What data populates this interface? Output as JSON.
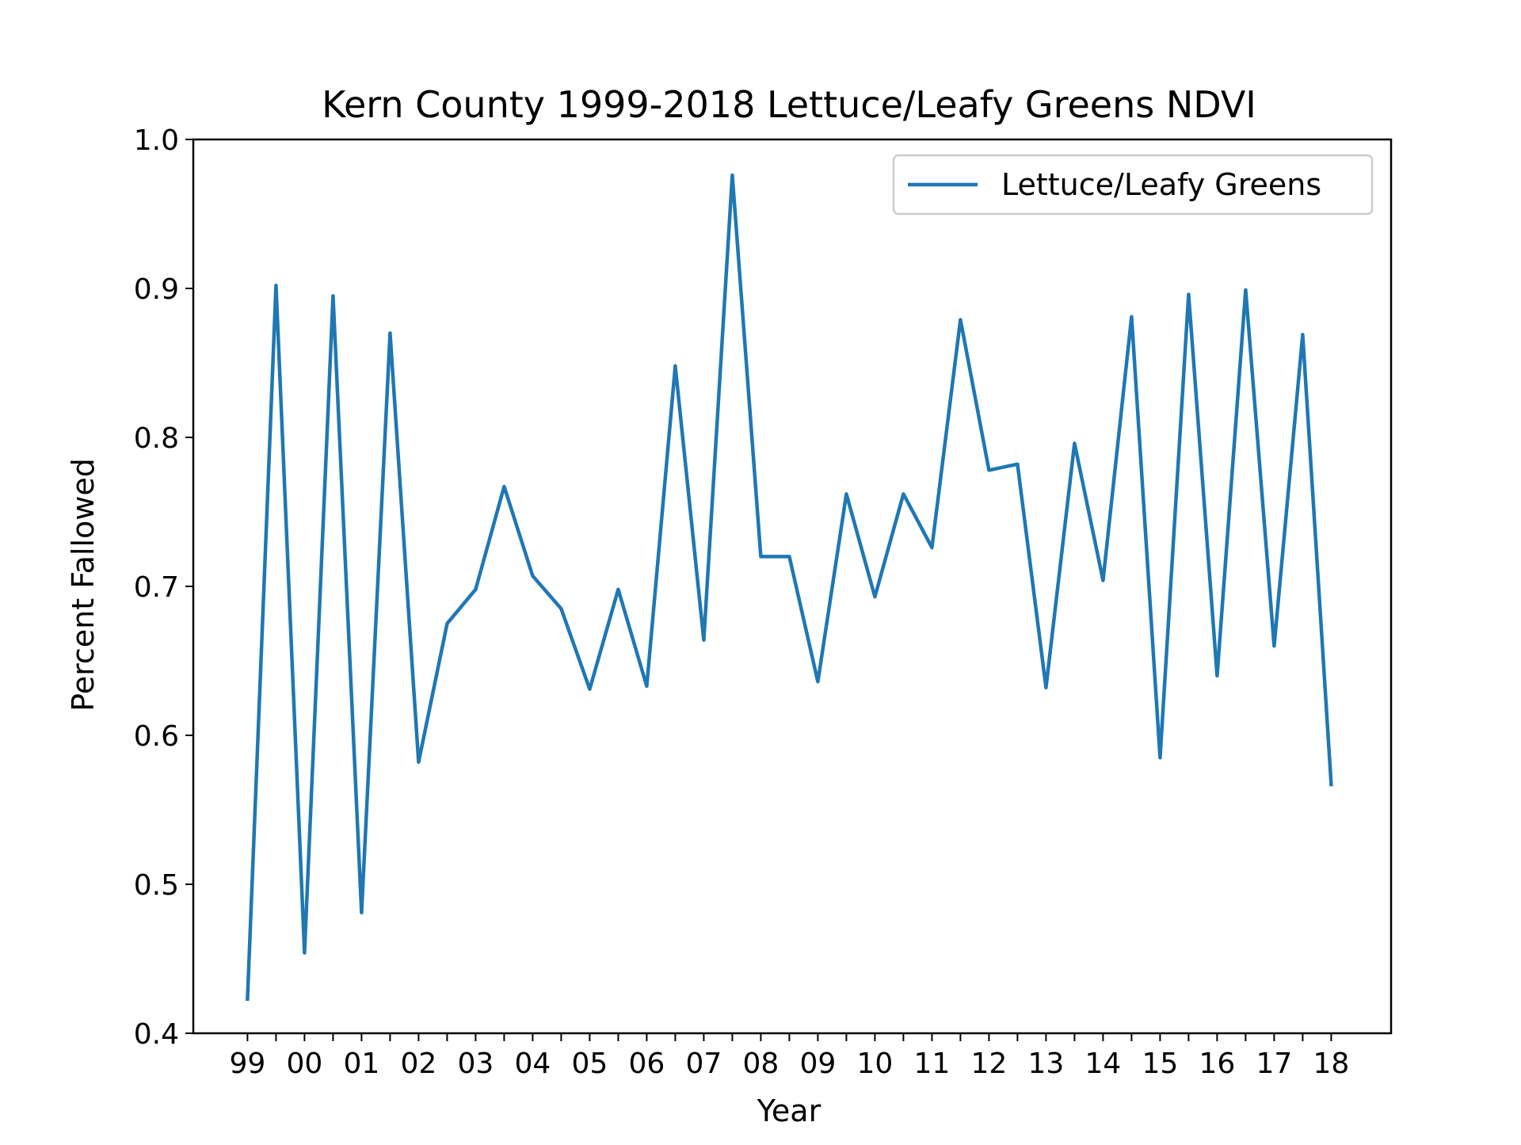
{
  "chart_data": {
    "type": "line",
    "title": "Kern County 1999-2018 Lettuce/Leafy Greens NDVI",
    "xlabel": "Year",
    "ylabel": "Percent Fallowed",
    "ylim": [
      0.4,
      1.0
    ],
    "yticks": [
      0.4,
      0.5,
      0.6,
      0.7,
      0.8,
      0.9,
      1.0
    ],
    "ytick_labels": [
      "0.4",
      "0.5",
      "0.6",
      "0.7",
      "0.8",
      "0.9",
      "1.0"
    ],
    "xlim": [
      -0.95,
      20.05
    ],
    "xticks": [
      0,
      1,
      2,
      3,
      4,
      5,
      6,
      7,
      8,
      9,
      10,
      11,
      12,
      13,
      14,
      15,
      16,
      17,
      18,
      19
    ],
    "xtick_labels": [
      "99",
      "00",
      "01",
      "02",
      "03",
      "04",
      "05",
      "06",
      "07",
      "08",
      "09",
      "10",
      "11",
      "12",
      "13",
      "14",
      "15",
      "16",
      "17",
      "18"
    ],
    "minor_xticks": true,
    "grid": false,
    "legend_position": "top-right",
    "series": [
      {
        "name": "Lettuce/Leafy Greens",
        "color": "#1f77b4",
        "x": [
          0,
          0.5,
          1,
          1.5,
          2,
          2.5,
          3,
          3.5,
          4,
          4.5,
          5,
          5.5,
          6,
          6.5,
          7,
          7.5,
          8,
          8.5,
          9,
          9.5,
          10,
          10.5,
          11,
          11.5,
          12,
          12.5,
          13,
          13.5,
          14,
          14.5,
          15,
          15.5,
          16,
          16.5,
          17,
          17.5,
          18,
          18.5,
          19
        ],
        "values": [
          0.423,
          0.902,
          0.454,
          0.895,
          0.481,
          0.87,
          0.582,
          0.675,
          0.698,
          0.767,
          0.707,
          0.685,
          0.631,
          0.698,
          0.633,
          0.848,
          0.664,
          0.976,
          0.72,
          0.72,
          0.636,
          0.762,
          0.693,
          0.762,
          0.726,
          0.879,
          0.778,
          0.782,
          0.632,
          0.796,
          0.704,
          0.881,
          0.585,
          0.896,
          0.64,
          0.899,
          0.66,
          0.869,
          0.567
        ]
      }
    ]
  }
}
